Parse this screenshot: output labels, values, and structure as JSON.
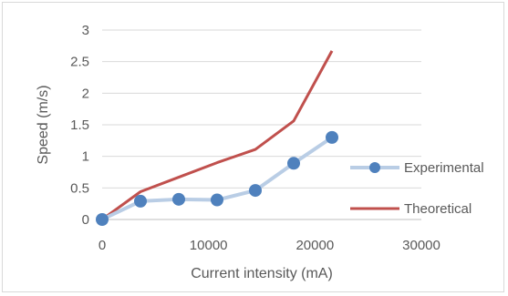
{
  "chart_data": {
    "type": "line",
    "title": "",
    "xlabel": "Current intensity (mA)",
    "ylabel": "Speed (m/s)",
    "xlim": [
      0,
      30000
    ],
    "ylim": [
      0,
      3
    ],
    "x_ticks": [
      0,
      10000,
      20000,
      30000
    ],
    "x_tick_labels": [
      "0",
      "10000",
      "20000",
      "30000"
    ],
    "y_ticks": [
      0,
      0.5,
      1,
      1.5,
      2,
      2.5,
      3
    ],
    "y_tick_labels": [
      "0",
      "0.5",
      "1",
      "1.5",
      "2",
      "2.5",
      "3"
    ],
    "grid": "horizontal",
    "legend_position": "right",
    "series": [
      {
        "name": "Experimental",
        "color": "#4f81bd",
        "line_color": "#b9cde5",
        "marker": "circle",
        "x": [
          0,
          3600,
          7200,
          10800,
          14400,
          18000,
          21600
        ],
        "y": [
          0,
          0.29,
          0.32,
          0.31,
          0.46,
          0.89,
          1.3
        ]
      },
      {
        "name": "Theoretical",
        "color": "#c0504d",
        "marker": "none",
        "x": [
          0,
          3600,
          7200,
          10800,
          14400,
          18000,
          21600
        ],
        "y": [
          0,
          0.44,
          0.67,
          0.9,
          1.11,
          1.56,
          2.67
        ]
      }
    ]
  }
}
